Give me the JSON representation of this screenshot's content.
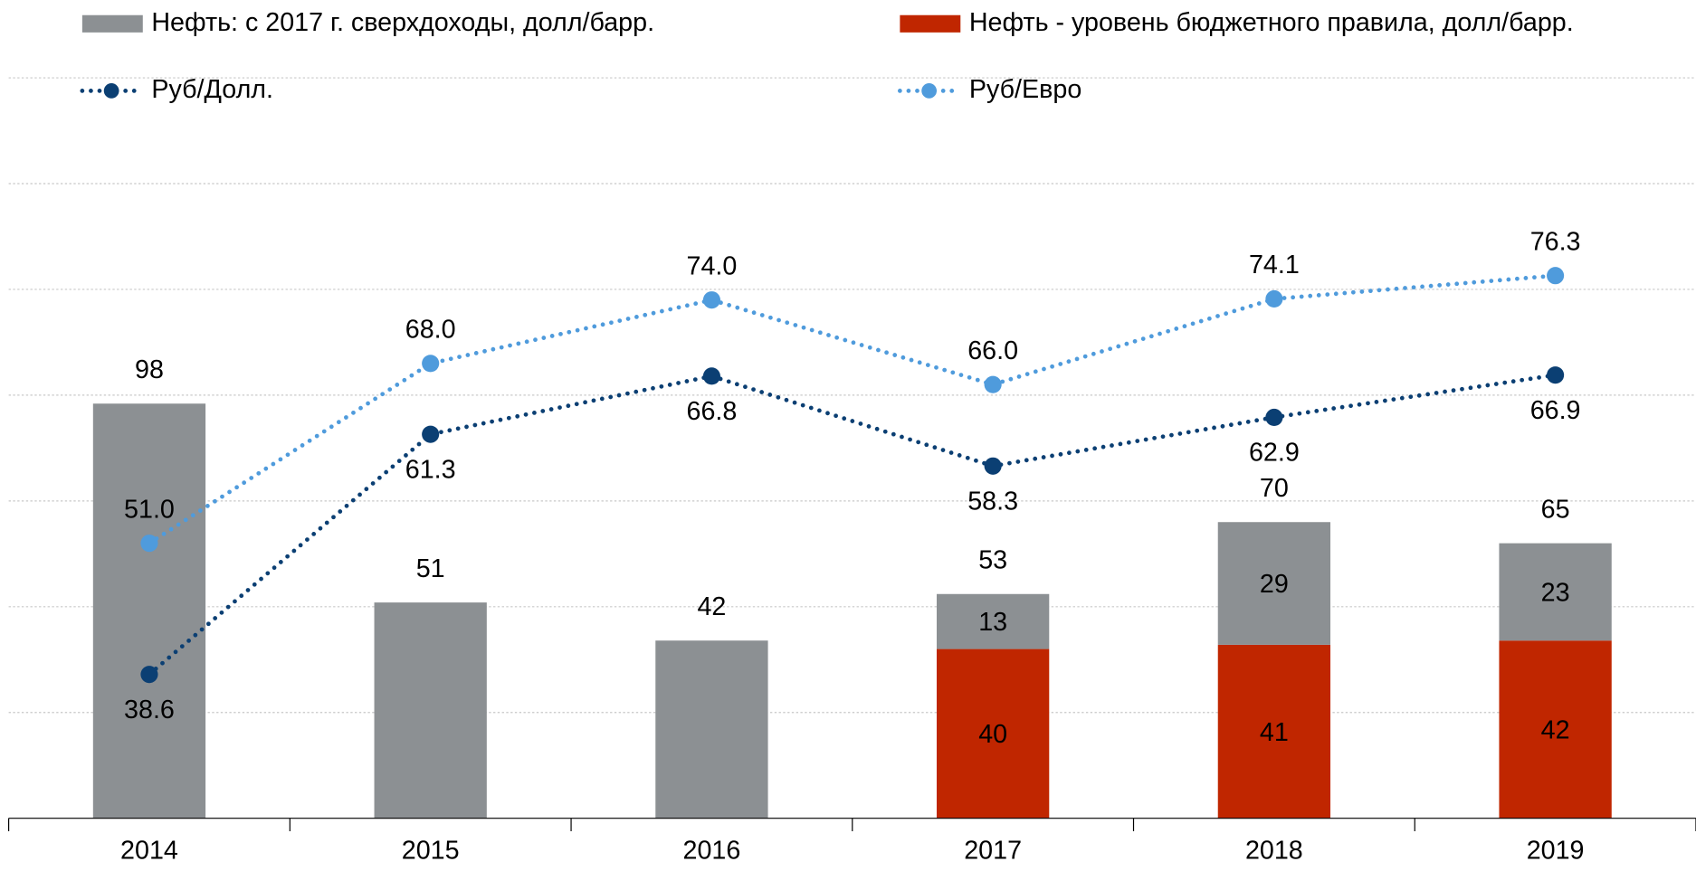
{
  "chart_data": {
    "type": "bar",
    "categories": [
      "2014",
      "2015",
      "2016",
      "2017",
      "2018",
      "2019"
    ],
    "series": [
      {
        "name": "Нефть - уровень бюджетного правила, долл/барр.",
        "color": "#c02600",
        "values": [
          null,
          null,
          null,
          40,
          41,
          42
        ]
      },
      {
        "name": "Нефть: с 2017 г. сверхдоходы, долл/барр.",
        "color": "#8c9093",
        "values": [
          98,
          51,
          42,
          13,
          29,
          23
        ]
      },
      {
        "name": "Руб/Долл.",
        "type": "line",
        "axis": "y2",
        "color": "#0b3f73",
        "values": [
          38.6,
          61.3,
          66.8,
          58.3,
          62.9,
          66.9
        ]
      },
      {
        "name": "Руб/Евро",
        "type": "line",
        "axis": "y2",
        "color": "#4f9bdc",
        "values": [
          51.0,
          68.0,
          74.0,
          66.0,
          74.1,
          76.3
        ],
        "value_labels": [
          "51.0",
          "68.0",
          "74.0",
          "66.0",
          "74.1",
          "76.3"
        ]
      }
    ],
    "totals": [
      98,
      51,
      42,
      53,
      70,
      65
    ],
    "stacked": true,
    "ylim": [
      0,
      175
    ],
    "yticks": [
      0,
      25,
      50,
      75,
      100,
      125,
      150,
      175
    ],
    "y2lim": [
      25,
      95
    ],
    "grid": true,
    "legend": "top"
  }
}
